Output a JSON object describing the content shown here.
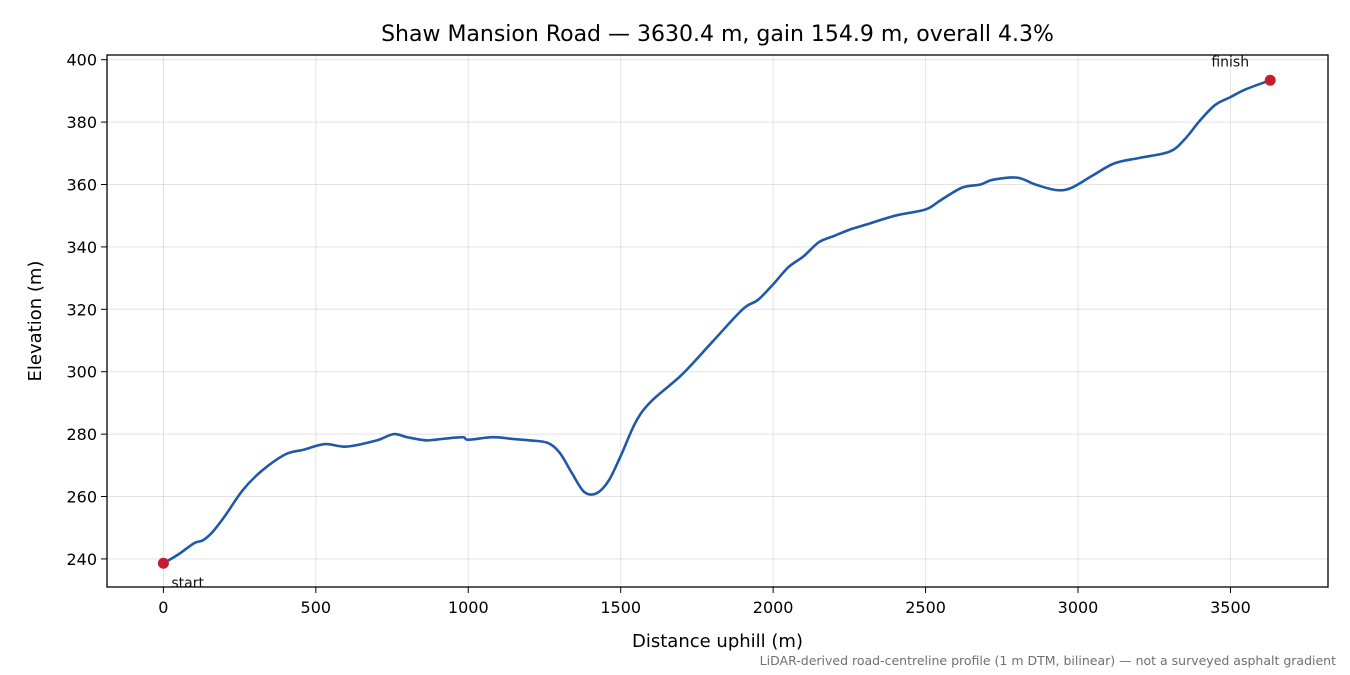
{
  "chart_data": {
    "type": "line",
    "title": "Shaw Mansion Road — 3630.4 m, gain 154.9 m, overall 4.3%",
    "xlabel": "Distance uphill (m)",
    "ylabel": "Elevation (m)",
    "xlim": [
      -185,
      3820
    ],
    "ylim": [
      231,
      401.5
    ],
    "xticks": [
      0,
      500,
      1000,
      1500,
      2000,
      2500,
      3000,
      3500
    ],
    "yticks": [
      240,
      260,
      280,
      300,
      320,
      340,
      360,
      380,
      400
    ],
    "grid": true,
    "line_color": "#2059a8",
    "marker_color": "#c41e2e",
    "series": [
      {
        "x": [
          0,
          50,
          100,
          130,
          160,
          200,
          260,
          320,
          400,
          460,
          530,
          600,
          700,
          755,
          800,
          860,
          900,
          980,
          1000,
          1080,
          1150,
          1200,
          1260,
          1300,
          1340,
          1380,
          1420,
          1460,
          1500,
          1550,
          1600,
          1700,
          1800,
          1900,
          1950,
          2000,
          2050,
          2100,
          2150,
          2200,
          2250,
          2300,
          2400,
          2500,
          2550,
          2620,
          2680,
          2720,
          2800,
          2860,
          2930,
          2980,
          3050,
          3120,
          3200,
          3300,
          3350,
          3400,
          3450,
          3500,
          3550,
          3630.4
        ],
        "y": [
          238.6,
          241.5,
          245,
          246,
          248.5,
          253.5,
          262,
          268,
          273.5,
          275,
          276.8,
          276,
          278,
          280,
          279,
          278,
          278.3,
          279,
          278.2,
          279,
          278.4,
          278,
          277.2,
          274,
          267.5,
          261.5,
          261,
          265,
          273,
          284,
          290.5,
          299,
          309.5,
          320,
          323,
          328,
          333.5,
          337,
          341.5,
          343.5,
          345.5,
          347,
          350,
          352,
          355,
          359,
          360,
          361.5,
          362.2,
          360,
          358.2,
          359,
          363,
          366.8,
          368.5,
          370.5,
          374.5,
          380.5,
          385.5,
          388,
          390.5,
          393.4
        ]
      }
    ],
    "annotations": [
      {
        "text": "start",
        "x": 0,
        "y": 238.6
      },
      {
        "text": "finish",
        "x": 3630.4,
        "y": 393.4
      }
    ],
    "footnote": "LiDAR-derived road-centreline profile (1 m DTM, bilinear) — not a surveyed asphalt gradient"
  }
}
